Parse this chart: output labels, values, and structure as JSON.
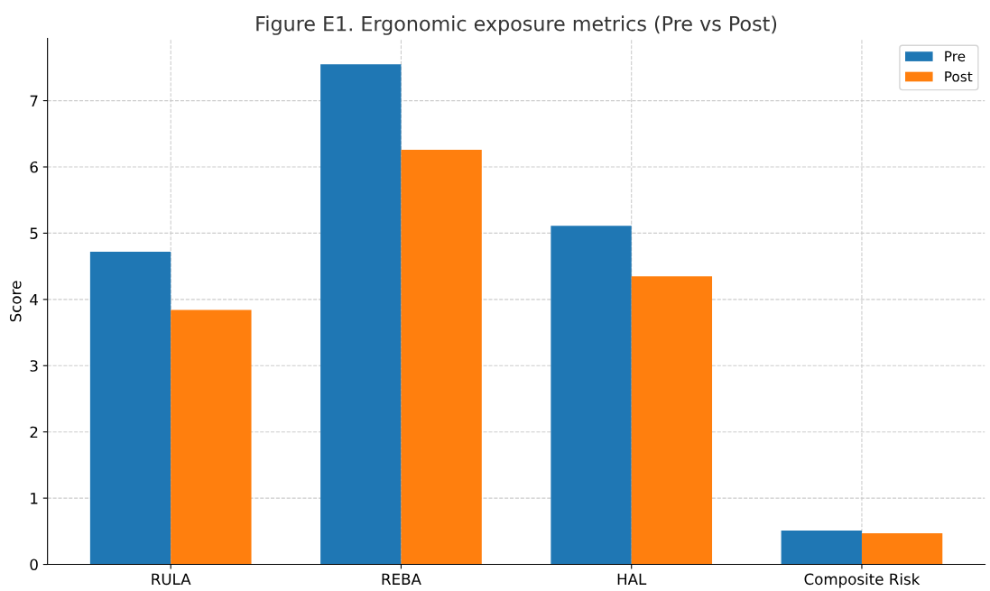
{
  "chart_data": {
    "type": "bar",
    "title": "Figure E1. Ergonomic exposure metrics (Pre vs Post)",
    "ylabel": "Score",
    "categories": [
      "RULA",
      "REBA",
      "HAL",
      "Composite Risk"
    ],
    "series": [
      {
        "name": "Pre",
        "color": "#1f77b4",
        "values": [
          4.72,
          7.55,
          5.11,
          0.51
        ]
      },
      {
        "name": "Post",
        "color": "#ff7f0e",
        "values": [
          3.84,
          6.26,
          4.35,
          0.47
        ]
      }
    ],
    "ylim": [
      0,
      7.94
    ],
    "yticks": [
      0,
      1,
      2,
      3,
      4,
      5,
      6,
      7
    ],
    "grid": true,
    "legend": "top right"
  }
}
